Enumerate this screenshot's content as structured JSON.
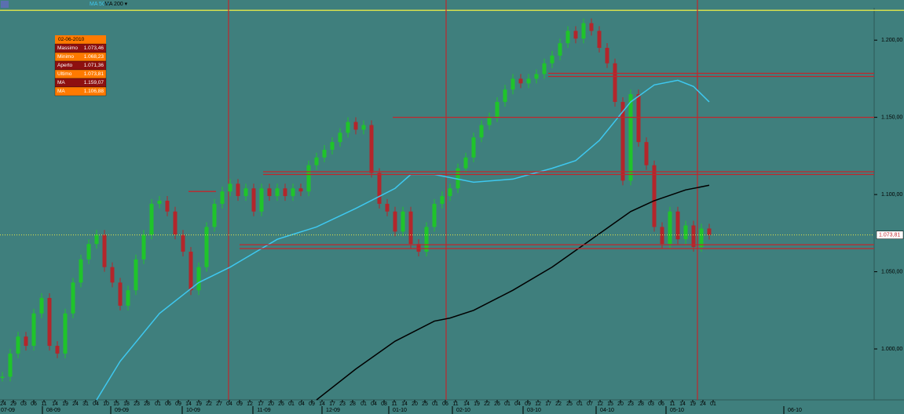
{
  "chart_data": {
    "type": "candlestick",
    "toolbar": [
      "MA 50 ▾",
      "MA 200 ▾"
    ],
    "x": [
      0,
      1,
      2,
      3,
      4,
      5,
      6,
      7,
      8,
      9,
      10,
      11,
      12,
      13,
      14,
      15,
      16,
      17,
      18,
      19,
      20,
      21,
      22,
      23,
      24,
      25,
      26,
      27,
      28,
      29,
      30,
      31,
      32,
      33,
      34,
      35,
      36,
      37,
      38,
      39,
      40,
      41,
      42,
      43,
      44,
      45,
      46,
      47,
      48,
      49,
      50,
      51,
      52,
      53,
      54,
      55,
      56,
      57,
      58,
      59,
      60,
      61,
      62,
      63,
      64,
      65,
      66,
      67,
      68,
      69,
      70,
      71,
      72,
      73,
      74,
      75,
      76,
      77,
      78,
      79,
      80,
      81,
      82,
      83,
      84,
      85,
      86,
      87,
      88,
      89,
      90
    ],
    "values": [
      982,
      997,
      1008,
      1002,
      1023,
      1033,
      1002,
      997,
      1023,
      1043,
      1058,
      1068,
      1074,
      1053,
      1043,
      1028,
      1038,
      1058,
      1074,
      1094,
      1096,
      1089,
      1074,
      1063,
      1038,
      1053,
      1079,
      1094,
      1102,
      1107,
      1099,
      1104,
      1089,
      1104,
      1099,
      1104,
      1099,
      1104,
      1102,
      1119,
      1124,
      1129,
      1134,
      1140,
      1147,
      1142,
      1145,
      1114,
      1094,
      1089,
      1076,
      1089,
      1068,
      1063,
      1079,
      1094,
      1099,
      1104,
      1117,
      1124,
      1137,
      1145,
      1150,
      1160,
      1168,
      1175,
      1172,
      1175,
      1178,
      1185,
      1190,
      1198,
      1206,
      1201,
      1211,
      1206,
      1195,
      1185,
      1160,
      1109,
      1165,
      1134,
      1119,
      1079,
      1068,
      1089,
      1071,
      1080,
      1066,
      1078,
      1073.81
    ],
    "up_color": "#1fc42a",
    "down_color": "#b3262b",
    "series": [
      {
        "name": "MA 50",
        "color": "#3ec8f0",
        "x": [
          12,
          15,
          20,
          25,
          29,
          30,
          35,
          40,
          45,
          50,
          52,
          55,
          60,
          65,
          70,
          73,
          76,
          80,
          83,
          86,
          88,
          90
        ],
        "values": [
          967,
          992,
          1023,
          1043,
          1053,
          1056,
          1071,
          1079,
          1091,
          1104,
          1113,
          1113,
          1108,
          1110,
          1117,
          1122,
          1135,
          1160,
          1171,
          1174,
          1170,
          1160
        ]
      },
      {
        "name": "MA 200",
        "color": "#000000",
        "x": [
          40,
          45,
          50,
          55,
          57,
          60,
          65,
          70,
          75,
          80,
          83,
          87,
          90
        ],
        "values": [
          967,
          987,
          1005,
          1018,
          1020,
          1025,
          1038,
          1053,
          1071,
          1089,
          1096,
          1103,
          1106
        ]
      }
    ],
    "hlines": [
      {
        "y": 1178.5,
        "x0": 69.5
      },
      {
        "y": 1176.5,
        "x0": 69.5
      },
      {
        "y": 1150,
        "x0": 49.7
      },
      {
        "y": 1114.8,
        "x0": 33.2
      },
      {
        "y": 1113,
        "x0": 33.2
      },
      {
        "y": 1067.5,
        "x0": 30.2
      },
      {
        "y": 1065,
        "x0": 30.2
      }
    ],
    "segments": [
      {
        "y": 1102,
        "x0": 23.7,
        "x1": 27.2
      }
    ],
    "vlines": [
      28.8,
      56.5,
      88.5
    ],
    "level_color": "#c0272d",
    "top_line": 1219.3,
    "top_line_color": "#e6e84a",
    "current_price": {
      "value": 1073.81,
      "label": "1.073,81"
    },
    "xlim": [
      -0.3,
      111
    ],
    "ylim": [
      967,
      1226
    ],
    "yticks": [
      {
        "value": 1000,
        "label": "1.000,00"
      },
      {
        "value": 1050,
        "label": "1.050,00"
      },
      {
        "value": 1100,
        "label": "1.100,00"
      },
      {
        "value": 1150,
        "label": "1.150,00"
      },
      {
        "value": 1200,
        "label": "1.200,00"
      }
    ],
    "xticks": [
      {
        "value": 0.1,
        "label": "24"
      },
      {
        "value": 1.4,
        "label": "29"
      },
      {
        "value": 2.7,
        "label": "03"
      },
      {
        "value": 4.0,
        "label": "06"
      },
      {
        "value": 5.3,
        "label": "11"
      },
      {
        "value": 6.7,
        "label": "14"
      },
      {
        "value": 8.0,
        "label": "19"
      },
      {
        "value": 9.3,
        "label": "24"
      },
      {
        "value": 10.6,
        "label": "31"
      },
      {
        "value": 11.9,
        "label": "04"
      },
      {
        "value": 13.2,
        "label": "10"
      },
      {
        "value": 14.5,
        "label": "15"
      },
      {
        "value": 15.8,
        "label": "18"
      },
      {
        "value": 17.1,
        "label": "23"
      },
      {
        "value": 18.4,
        "label": "28"
      },
      {
        "value": 19.8,
        "label": "01"
      },
      {
        "value": 21.1,
        "label": "06"
      },
      {
        "value": 22.4,
        "label": "09"
      },
      {
        "value": 23.7,
        "label": "14"
      },
      {
        "value": 25.0,
        "label": "19"
      },
      {
        "value": 26.3,
        "label": "22"
      },
      {
        "value": 27.6,
        "label": "27"
      },
      {
        "value": 28.9,
        "label": "04"
      },
      {
        "value": 30.2,
        "label": "09"
      },
      {
        "value": 31.5,
        "label": "12"
      },
      {
        "value": 32.9,
        "label": "17"
      },
      {
        "value": 34.2,
        "label": "20"
      },
      {
        "value": 35.5,
        "label": "26"
      },
      {
        "value": 36.8,
        "label": "01"
      },
      {
        "value": 38.1,
        "label": "04"
      },
      {
        "value": 39.4,
        "label": "09"
      },
      {
        "value": 40.7,
        "label": "14"
      },
      {
        "value": 42.0,
        "label": "17"
      },
      {
        "value": 43.3,
        "label": "23"
      },
      {
        "value": 44.6,
        "label": "28"
      },
      {
        "value": 46.0,
        "label": "01"
      },
      {
        "value": 47.3,
        "label": "04"
      },
      {
        "value": 48.6,
        "label": "08"
      },
      {
        "value": 49.9,
        "label": "11"
      },
      {
        "value": 51.2,
        "label": "14"
      },
      {
        "value": 52.5,
        "label": "20"
      },
      {
        "value": 53.8,
        "label": "25"
      },
      {
        "value": 55.1,
        "label": "01"
      },
      {
        "value": 56.4,
        "label": "06"
      },
      {
        "value": 57.7,
        "label": "11"
      },
      {
        "value": 59.1,
        "label": "14"
      },
      {
        "value": 60.4,
        "label": "19"
      },
      {
        "value": 61.7,
        "label": "22"
      },
      {
        "value": 63.0,
        "label": "26"
      },
      {
        "value": 64.3,
        "label": "01"
      },
      {
        "value": 65.6,
        "label": "04"
      },
      {
        "value": 66.9,
        "label": "09"
      },
      {
        "value": 68.2,
        "label": "12"
      },
      {
        "value": 69.5,
        "label": "17"
      },
      {
        "value": 70.8,
        "label": "22"
      },
      {
        "value": 72.2,
        "label": "25"
      },
      {
        "value": 73.5,
        "label": "01"
      },
      {
        "value": 74.8,
        "label": "07"
      },
      {
        "value": 76.1,
        "label": "12"
      },
      {
        "value": 77.4,
        "label": "15"
      },
      {
        "value": 78.7,
        "label": "20"
      },
      {
        "value": 80.0,
        "label": "23"
      },
      {
        "value": 81.3,
        "label": "28"
      },
      {
        "value": 82.6,
        "label": "03"
      },
      {
        "value": 83.9,
        "label": "06"
      },
      {
        "value": 85.3,
        "label": "11"
      },
      {
        "value": 86.6,
        "label": "14"
      },
      {
        "value": 87.9,
        "label": "19"
      },
      {
        "value": 89.2,
        "label": "24"
      },
      {
        "value": 90.5,
        "label": "01"
      }
    ],
    "month_ticks": [
      {
        "value": 0.7,
        "label": "07-09"
      },
      {
        "value": 6.5,
        "label": "08-09"
      },
      {
        "value": 15.2,
        "label": "09-09"
      },
      {
        "value": 24.3,
        "label": "10-09"
      },
      {
        "value": 33.3,
        "label": "11-09"
      },
      {
        "value": 42.1,
        "label": "12-09"
      },
      {
        "value": 50.6,
        "label": "01-10"
      },
      {
        "value": 58.7,
        "label": "02-10"
      },
      {
        "value": 67.7,
        "label": "03-10"
      },
      {
        "value": 77.0,
        "label": "04-10"
      },
      {
        "value": 85.9,
        "label": "05-10"
      },
      {
        "value": 100.9,
        "label": "06-10"
      }
    ],
    "info_box": {
      "date": "02-06-2010",
      "rows": [
        [
          "Massimo",
          "1.073,46"
        ],
        [
          "Minimo",
          "1.068,23"
        ],
        [
          "Aperto",
          "1.071,36"
        ],
        [
          "Ultimo",
          "1.073,81"
        ],
        [
          "MA",
          "1.159,07"
        ],
        [
          "MA",
          "1.106,88"
        ]
      ]
    }
  }
}
